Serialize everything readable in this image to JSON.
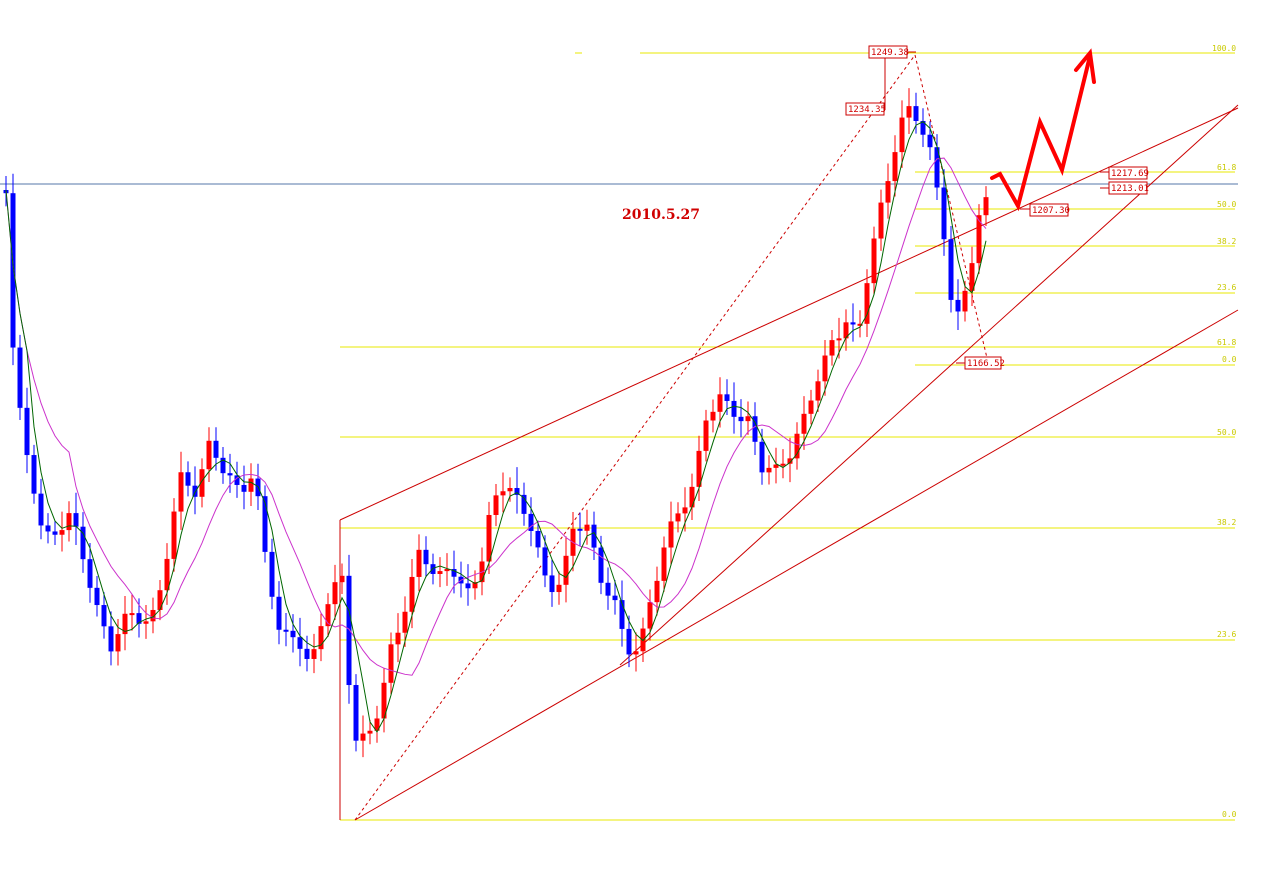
{
  "chart_data": {
    "type": "candlestick",
    "title": "",
    "annotation_date": "2010.5.27",
    "colors": {
      "up": "#ff0000",
      "down": "#0000ff",
      "ma_fast": "#006600",
      "ma_slow": "#cc33cc",
      "fib": "#e8e800",
      "channel": "#cc0000",
      "hline": "#5577aa",
      "projection": "#ff0000"
    },
    "price_labels": [
      {
        "name": "high",
        "text": "1249.38"
      },
      {
        "name": "sub-high",
        "text": "1234.35"
      },
      {
        "name": "fib-61",
        "text": "1217.69"
      },
      {
        "name": "last",
        "text": "1213.01"
      },
      {
        "name": "fib-50",
        "text": "1207.30"
      },
      {
        "name": "low",
        "text": "1166.52"
      }
    ],
    "fib_upper_levels": [
      "100.0",
      "61.8",
      "50.0",
      "38.2",
      "23.6",
      "0.0"
    ],
    "fib_lower_levels": [
      "61.8",
      "50.0",
      "38.2",
      "23.6",
      "0.0"
    ]
  }
}
